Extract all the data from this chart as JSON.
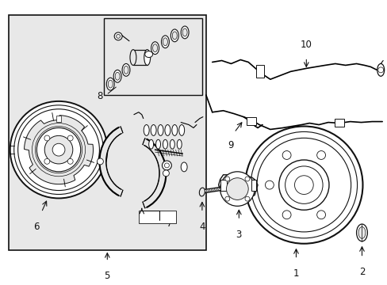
{
  "bg_color": "#e8e8e8",
  "white": "#ffffff",
  "black": "#111111",
  "fig_width": 4.89,
  "fig_height": 3.6,
  "dpi": 100
}
